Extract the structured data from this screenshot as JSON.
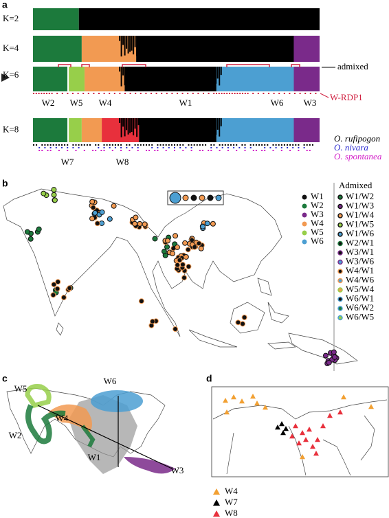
{
  "panel_a": {
    "label": "a",
    "k_labels": [
      "K=2",
      "K=4",
      "K=6",
      "K=8"
    ],
    "admixed": "admixed",
    "rdp": "W-RDP1",
    "groups_k6": [
      "W2",
      "W5",
      "W4",
      "W1",
      "W6",
      "W3"
    ],
    "groups_k8": [
      "W7",
      "W8"
    ],
    "species": [
      {
        "name": "O. rufipogon",
        "color": "#000000"
      },
      {
        "name": "O. nivara",
        "color": "#2b2bd0"
      },
      {
        "name": "O. spontanea",
        "color": "#d21fc8"
      }
    ]
  },
  "panel_b": {
    "label": "b",
    "legend_title": "Admixed",
    "groups": [
      {
        "name": "W1",
        "color": "#111111"
      },
      {
        "name": "W2",
        "color": "#1c7a3c"
      },
      {
        "name": "W3",
        "color": "#7a2a8a"
      },
      {
        "name": "W4",
        "color": "#f29a52"
      },
      {
        "name": "W5",
        "color": "#97cf4a"
      },
      {
        "name": "W6",
        "color": "#4c9fd2"
      }
    ],
    "admixed": [
      "W1/W2",
      "W1/W3",
      "W1/W4",
      "W1/W5",
      "W1/W6",
      "W2/W1",
      "W3/W1",
      "W3/W6",
      "W4/W1",
      "W4/W6",
      "W5/W4",
      "W6/W1",
      "W6/W2",
      "W6/W5"
    ]
  },
  "panel_c": {
    "label": "c",
    "groups": [
      "W5",
      "W6",
      "W4",
      "W2",
      "W1",
      "W3"
    ]
  },
  "panel_d": {
    "label": "d",
    "legend": [
      {
        "name": "W4",
        "color": "#f2a032"
      },
      {
        "name": "W7",
        "color": "#000000"
      },
      {
        "name": "W8",
        "color": "#e8303c"
      }
    ]
  }
}
